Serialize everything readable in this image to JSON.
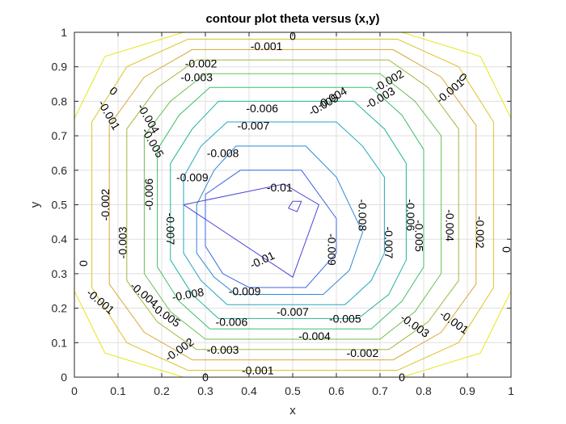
{
  "chart_data": {
    "type": "contour",
    "title": "contour plot theta versus (x,y)",
    "xlabel": "x",
    "ylabel": "y",
    "xlim": [
      0,
      1
    ],
    "ylim": [
      0,
      1
    ],
    "grid": true,
    "xticks": [
      "0",
      "0.1",
      "0.2",
      "0.3",
      "0.4",
      "0.5",
      "0.6",
      "0.7",
      "0.8",
      "0.9",
      "1"
    ],
    "yticks": [
      "0",
      "0.1",
      "0.2",
      "0.3",
      "0.4",
      "0.5",
      "0.6",
      "0.7",
      "0.8",
      "0.9",
      "1"
    ],
    "colors": {
      "0": "#e6e61a",
      "-0.001": "#dcc42c",
      "-0.002": "#d8a838",
      "-0.003": "#9cbb3e",
      "-0.004": "#6cc052",
      "-0.005": "#3dbd6c",
      "-0.006": "#25b49a",
      "-0.007": "#26a6c4",
      "-0.008": "#2e88d6",
      "-0.009": "#3d64e4",
      "-0.01": "#4b45d8"
    },
    "levels": [
      {
        "level": "0",
        "points": [
          [
            0.25,
            0
          ],
          [
            0.75,
            0
          ],
          [
            0.93,
            0.07
          ],
          [
            1,
            0.25
          ],
          [
            1,
            0.75
          ],
          [
            0.93,
            0.93
          ],
          [
            0.75,
            1
          ],
          [
            0.25,
            1
          ],
          [
            0.07,
            0.93
          ],
          [
            0,
            0.75
          ],
          [
            0,
            0.25
          ],
          [
            0.07,
            0.07
          ],
          [
            0.25,
            0
          ]
        ]
      },
      {
        "level": "-0.001",
        "points": [
          [
            0.26,
            0.02
          ],
          [
            0.74,
            0.02
          ],
          [
            0.88,
            0.1
          ],
          [
            0.96,
            0.26
          ],
          [
            0.96,
            0.74
          ],
          [
            0.88,
            0.9
          ],
          [
            0.74,
            0.98
          ],
          [
            0.26,
            0.98
          ],
          [
            0.12,
            0.9
          ],
          [
            0.04,
            0.74
          ],
          [
            0.04,
            0.26
          ],
          [
            0.12,
            0.1
          ],
          [
            0.26,
            0.02
          ]
        ]
      },
      {
        "level": "-0.002",
        "points": [
          [
            0.27,
            0.05
          ],
          [
            0.73,
            0.05
          ],
          [
            0.84,
            0.13
          ],
          [
            0.92,
            0.27
          ],
          [
            0.92,
            0.73
          ],
          [
            0.84,
            0.87
          ],
          [
            0.73,
            0.95
          ],
          [
            0.27,
            0.95
          ],
          [
            0.16,
            0.87
          ],
          [
            0.08,
            0.73
          ],
          [
            0.08,
            0.27
          ],
          [
            0.16,
            0.13
          ],
          [
            0.27,
            0.05
          ]
        ]
      },
      {
        "level": "-0.003",
        "points": [
          [
            0.28,
            0.08
          ],
          [
            0.72,
            0.08
          ],
          [
            0.81,
            0.16
          ],
          [
            0.88,
            0.28
          ],
          [
            0.88,
            0.72
          ],
          [
            0.81,
            0.84
          ],
          [
            0.72,
            0.92
          ],
          [
            0.28,
            0.92
          ],
          [
            0.19,
            0.84
          ],
          [
            0.12,
            0.72
          ],
          [
            0.12,
            0.28
          ],
          [
            0.19,
            0.16
          ],
          [
            0.28,
            0.08
          ]
        ]
      },
      {
        "level": "-0.004",
        "points": [
          [
            0.3,
            0.11
          ],
          [
            0.7,
            0.11
          ],
          [
            0.78,
            0.19
          ],
          [
            0.84,
            0.3
          ],
          [
            0.84,
            0.7
          ],
          [
            0.78,
            0.8
          ],
          [
            0.7,
            0.88
          ],
          [
            0.3,
            0.88
          ],
          [
            0.22,
            0.8
          ],
          [
            0.16,
            0.7
          ],
          [
            0.16,
            0.3
          ],
          [
            0.22,
            0.19
          ],
          [
            0.3,
            0.11
          ]
        ]
      },
      {
        "level": "-0.005",
        "points": [
          [
            0.31,
            0.14
          ],
          [
            0.68,
            0.14
          ],
          [
            0.75,
            0.22
          ],
          [
            0.8,
            0.32
          ],
          [
            0.8,
            0.66
          ],
          [
            0.75,
            0.76
          ],
          [
            0.68,
            0.84
          ],
          [
            0.31,
            0.84
          ],
          [
            0.24,
            0.76
          ],
          [
            0.19,
            0.66
          ],
          [
            0.19,
            0.32
          ],
          [
            0.24,
            0.22
          ],
          [
            0.31,
            0.14
          ]
        ]
      },
      {
        "level": "-0.006",
        "points": [
          [
            0.33,
            0.17
          ],
          [
            0.65,
            0.17
          ],
          [
            0.72,
            0.24
          ],
          [
            0.76,
            0.34
          ],
          [
            0.76,
            0.62
          ],
          [
            0.71,
            0.72
          ],
          [
            0.64,
            0.8
          ],
          [
            0.33,
            0.8
          ],
          [
            0.27,
            0.72
          ],
          [
            0.22,
            0.62
          ],
          [
            0.22,
            0.34
          ],
          [
            0.27,
            0.24
          ],
          [
            0.33,
            0.17
          ]
        ]
      },
      {
        "level": "-0.007",
        "points": [
          [
            0.35,
            0.21
          ],
          [
            0.62,
            0.21
          ],
          [
            0.68,
            0.28
          ],
          [
            0.71,
            0.36
          ],
          [
            0.71,
            0.58
          ],
          [
            0.66,
            0.67
          ],
          [
            0.6,
            0.74
          ],
          [
            0.35,
            0.74
          ],
          [
            0.29,
            0.67
          ],
          [
            0.25,
            0.58
          ],
          [
            0.25,
            0.36
          ],
          [
            0.29,
            0.28
          ],
          [
            0.35,
            0.21
          ]
        ]
      },
      {
        "level": "-0.008",
        "points": [
          [
            0.37,
            0.24
          ],
          [
            0.57,
            0.24
          ],
          [
            0.63,
            0.31
          ],
          [
            0.66,
            0.42
          ],
          [
            0.6,
            0.58
          ],
          [
            0.53,
            0.67
          ],
          [
            0.37,
            0.67
          ],
          [
            0.32,
            0.6
          ],
          [
            0.28,
            0.5
          ],
          [
            0.28,
            0.36
          ],
          [
            0.32,
            0.29
          ],
          [
            0.37,
            0.24
          ]
        ]
      },
      {
        "level": "-0.009",
        "points": [
          [
            0.4,
            0.26
          ],
          [
            0.53,
            0.26
          ],
          [
            0.6,
            0.36
          ],
          [
            0.6,
            0.46
          ],
          [
            0.52,
            0.6
          ],
          [
            0.38,
            0.6
          ],
          [
            0.3,
            0.53
          ],
          [
            0.3,
            0.38
          ],
          [
            0.34,
            0.3
          ],
          [
            0.4,
            0.26
          ]
        ]
      },
      {
        "level": "-0.01",
        "points": [
          [
            0.25,
            0.5
          ],
          [
            0.5,
            0.29
          ],
          [
            0.56,
            0.5
          ],
          [
            0.48,
            0.56
          ],
          [
            0.25,
            0.5
          ]
        ]
      },
      {
        "level": "-0.01",
        "points": [
          [
            0.49,
            0.49
          ],
          [
            0.51,
            0.48
          ],
          [
            0.52,
            0.51
          ],
          [
            0.5,
            0.51
          ],
          [
            0.49,
            0.49
          ]
        ]
      }
    ],
    "labels": [
      {
        "text": "0",
        "x": 0.5,
        "y": 0.99,
        "angle": 0
      },
      {
        "text": "0",
        "x": 0.09,
        "y": 0.83,
        "angle": 40
      },
      {
        "text": "0",
        "x": 0.89,
        "y": 0.87,
        "angle": 40
      },
      {
        "text": "0",
        "x": 0.02,
        "y": 0.33,
        "angle": -90
      },
      {
        "text": "0",
        "x": 0.99,
        "y": 0.37,
        "angle": 90
      },
      {
        "text": "0",
        "x": 0.3,
        "y": 0.0,
        "angle": 0
      },
      {
        "text": "0",
        "x": 0.75,
        "y": 0.0,
        "angle": 0
      },
      {
        "text": "-0.001",
        "x": 0.44,
        "y": 0.96,
        "angle": 0
      },
      {
        "text": "-0.001",
        "x": 0.08,
        "y": 0.76,
        "angle": 60
      },
      {
        "text": "-0.001",
        "x": 0.86,
        "y": 0.83,
        "angle": -40
      },
      {
        "text": "-0.001",
        "x": 0.06,
        "y": 0.22,
        "angle": 40
      },
      {
        "text": "-0.001",
        "x": 0.87,
        "y": 0.16,
        "angle": 35
      },
      {
        "text": "-0.001",
        "x": 0.42,
        "y": 0.02,
        "angle": 0
      },
      {
        "text": "-0.002",
        "x": 0.29,
        "y": 0.91,
        "angle": 0
      },
      {
        "text": "-0.002",
        "x": 0.72,
        "y": 0.86,
        "angle": -30
      },
      {
        "text": "-0.002",
        "x": 0.07,
        "y": 0.5,
        "angle": -90
      },
      {
        "text": "-0.002",
        "x": 0.93,
        "y": 0.42,
        "angle": 90
      },
      {
        "text": "-0.002",
        "x": 0.24,
        "y": 0.08,
        "angle": -35
      },
      {
        "text": "-0.002",
        "x": 0.66,
        "y": 0.07,
        "angle": 0
      },
      {
        "text": "-0.003",
        "x": 0.28,
        "y": 0.87,
        "angle": 0
      },
      {
        "text": "-0.003",
        "x": 0.7,
        "y": 0.81,
        "angle": -30
      },
      {
        "text": "-0.003",
        "x": 0.11,
        "y": 0.39,
        "angle": -90
      },
      {
        "text": "-0.003",
        "x": 0.78,
        "y": 0.15,
        "angle": 35
      },
      {
        "text": "-0.003",
        "x": 0.34,
        "y": 0.08,
        "angle": 0
      },
      {
        "text": "-0.004",
        "x": 0.17,
        "y": 0.75,
        "angle": 60
      },
      {
        "text": "-0.004",
        "x": 0.59,
        "y": 0.81,
        "angle": -30
      },
      {
        "text": "-0.004",
        "x": 0.86,
        "y": 0.44,
        "angle": 90
      },
      {
        "text": "-0.004",
        "x": 0.16,
        "y": 0.24,
        "angle": 40
      },
      {
        "text": "-0.004",
        "x": 0.55,
        "y": 0.12,
        "angle": 0
      },
      {
        "text": "-0.005",
        "x": 0.18,
        "y": 0.68,
        "angle": 60
      },
      {
        "text": "-0.005",
        "x": 0.57,
        "y": 0.79,
        "angle": -30
      },
      {
        "text": "-0.005",
        "x": 0.79,
        "y": 0.41,
        "angle": 90
      },
      {
        "text": "-0.005",
        "x": 0.21,
        "y": 0.18,
        "angle": 35
      },
      {
        "text": "-0.005",
        "x": 0.62,
        "y": 0.17,
        "angle": 0
      },
      {
        "text": "-0.006",
        "x": 0.43,
        "y": 0.78,
        "angle": 0
      },
      {
        "text": "-0.006",
        "x": 0.17,
        "y": 0.53,
        "angle": -90
      },
      {
        "text": "-0.006",
        "x": 0.77,
        "y": 0.47,
        "angle": 90
      },
      {
        "text": "-0.006",
        "x": 0.36,
        "y": 0.16,
        "angle": 0
      },
      {
        "text": "-0.007",
        "x": 0.41,
        "y": 0.73,
        "angle": 0
      },
      {
        "text": "-0.007",
        "x": 0.22,
        "y": 0.43,
        "angle": 90
      },
      {
        "text": "-0.007",
        "x": 0.72,
        "y": 0.39,
        "angle": 90
      },
      {
        "text": "-0.007",
        "x": 0.5,
        "y": 0.19,
        "angle": 0
      },
      {
        "text": "-0.008",
        "x": 0.34,
        "y": 0.65,
        "angle": 0
      },
      {
        "text": "-0.008",
        "x": 0.66,
        "y": 0.47,
        "angle": 90
      },
      {
        "text": "-0.008",
        "x": 0.26,
        "y": 0.24,
        "angle": -10
      },
      {
        "text": "-0.009",
        "x": 0.27,
        "y": 0.58,
        "angle": 0
      },
      {
        "text": "-0.009",
        "x": 0.59,
        "y": 0.37,
        "angle": 90
      },
      {
        "text": "-0.009",
        "x": 0.39,
        "y": 0.25,
        "angle": 0
      },
      {
        "text": "-0.01",
        "x": 0.47,
        "y": 0.55,
        "angle": 0
      },
      {
        "text": "-0.01",
        "x": 0.43,
        "y": 0.34,
        "angle": -25
      }
    ]
  }
}
